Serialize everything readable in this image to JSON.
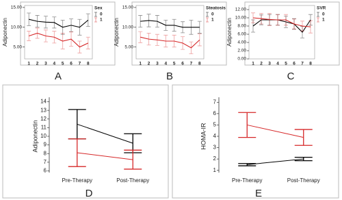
{
  "chart_data": [
    {
      "type": "line",
      "panel_label": "A",
      "y_label": "Adiponectin",
      "legend_title": "Sex",
      "categories": [
        "1",
        "2",
        "3",
        "4",
        "5",
        "6",
        "7",
        "8"
      ],
      "ylim": [
        2,
        15.5
      ],
      "yticks": [
        {
          "value": 5,
          "label": "5.00"
        },
        {
          "value": 10,
          "label": "10.00"
        },
        {
          "value": 15,
          "label": "15.00"
        }
      ],
      "series": [
        {
          "name": "0",
          "color": "#000000",
          "values": [
            12,
            11.5,
            11.3,
            11.2,
            10,
            10.5,
            10,
            11.8
          ],
          "errors": [
            1.6,
            1.5,
            1.5,
            1.4,
            1.8,
            1.6,
            2,
            1.6
          ]
        },
        {
          "name": "1",
          "color": "#d62728",
          "values": [
            7.8,
            8.5,
            7.8,
            7.5,
            6.5,
            7,
            5,
            6
          ],
          "errors": [
            1.2,
            1.3,
            1.5,
            1.5,
            2,
            1.8,
            1.5,
            1.5
          ]
        }
      ]
    },
    {
      "type": "line",
      "panel_label": "B",
      "y_label": "Adiponectin",
      "legend_title": "Steatosis",
      "categories": [
        "1",
        "2",
        "3",
        "4",
        "5",
        "6",
        "7",
        "8"
      ],
      "ylim": [
        2,
        15.5
      ],
      "yticks": [
        {
          "value": 5,
          "label": "5.00"
        },
        {
          "value": 10,
          "label": "10.00"
        },
        {
          "value": 15,
          "label": "15.00"
        }
      ],
      "series": [
        {
          "name": "0",
          "color": "#000000",
          "values": [
            11.5,
            11.7,
            11.5,
            10.5,
            10.5,
            10,
            10,
            10
          ],
          "errors": [
            1.5,
            1.6,
            1.5,
            1.3,
            1.5,
            1.4,
            1.8,
            1.5
          ]
        },
        {
          "name": "1",
          "color": "#d62728",
          "values": [
            7.5,
            7,
            6.8,
            6.5,
            6.5,
            6,
            4.8,
            6.8
          ],
          "errors": [
            1.4,
            1.5,
            1.4,
            1.5,
            1.5,
            1.6,
            1.5,
            1.5
          ]
        }
      ]
    },
    {
      "type": "line",
      "panel_label": "C",
      "y_label": "Adiponectin",
      "legend_title": "SVR",
      "categories": [
        "1",
        "2",
        "3",
        "4",
        "5",
        "6",
        "7",
        "8"
      ],
      "ylim": [
        0,
        13
      ],
      "yticks": [
        {
          "value": 0,
          "label": "0.00"
        },
        {
          "value": 2,
          "label": "2.00"
        },
        {
          "value": 4,
          "label": "4.00"
        },
        {
          "value": 6,
          "label": "6.00"
        },
        {
          "value": 8,
          "label": "8.00"
        },
        {
          "value": 10,
          "label": "10.00"
        },
        {
          "value": 12,
          "label": "12.00"
        }
      ],
      "series": [
        {
          "name": "0",
          "color": "#000000",
          "values": [
            8,
            9.5,
            9.5,
            9.5,
            9,
            8.5,
            6.5,
            9.5
          ],
          "errors": [
            1.5,
            1.2,
            1.3,
            1.3,
            1.4,
            1.3,
            1.4,
            1.3
          ]
        },
        {
          "name": "1",
          "color": "#d62728",
          "values": [
            10,
            9.8,
            9.6,
            9.5,
            9.5,
            8.5,
            8,
            7.8
          ],
          "errors": [
            1.2,
            1.3,
            1.5,
            1.3,
            1.3,
            1.2,
            1.2,
            1.5
          ]
        }
      ]
    },
    {
      "type": "line",
      "panel_label": "D",
      "y_label": "Adiponectin",
      "categories": [
        "Pre-Therapy",
        "Post-Therapy"
      ],
      "ylim": [
        5.8,
        14.2
      ],
      "yticks": [
        6,
        7,
        8,
        9,
        10,
        11,
        12,
        13,
        14
      ],
      "series": [
        {
          "name": null,
          "color": "#000000",
          "values": [
            11.4,
            9.2
          ],
          "errors": [
            1.7,
            1.1
          ]
        },
        {
          "name": null,
          "color": "#d62728",
          "values": [
            8.1,
            7.3
          ],
          "errors": [
            1.6,
            1.1
          ]
        }
      ]
    },
    {
      "type": "line",
      "panel_label": "E",
      "y_label": "HOMA-IR",
      "categories": [
        "Pre-Therapy",
        "Post-Therapy"
      ],
      "ylim": [
        0.8,
        7.2
      ],
      "yticks": [
        1,
        2,
        3,
        4,
        5,
        6,
        7
      ],
      "series": [
        {
          "name": null,
          "color": "#000000",
          "values": [
            1.5,
            2.0
          ],
          "errors": [
            0.1,
            0.15
          ]
        },
        {
          "name": null,
          "color": "#d62728",
          "values": [
            5.0,
            3.9
          ],
          "errors": [
            1.1,
            0.7
          ]
        }
      ]
    }
  ]
}
